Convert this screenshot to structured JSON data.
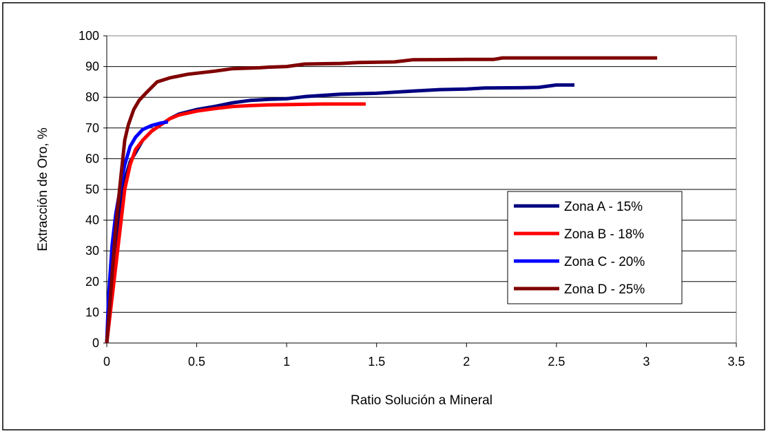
{
  "chart_data": {
    "type": "line",
    "title": "",
    "xlabel": "Ratio Solución a Mineral",
    "ylabel": "Extracción de Oro, %",
    "xlim": [
      0,
      3.5
    ],
    "ylim": [
      0,
      100
    ],
    "x_ticks": [
      "0",
      "0.5",
      "1",
      "1.5",
      "2",
      "2.5",
      "3",
      "3.5"
    ],
    "y_ticks": [
      "0",
      "10",
      "20",
      "30",
      "40",
      "50",
      "60",
      "70",
      "80",
      "90",
      "100"
    ],
    "grid": "horizontal",
    "legend_position": "inside-right",
    "series": [
      {
        "name": "Zona A - 15%",
        "color": "#000080",
        "points": [
          [
            0,
            0
          ],
          [
            0.02,
            12
          ],
          [
            0.05,
            30
          ],
          [
            0.08,
            45
          ],
          [
            0.1,
            53
          ],
          [
            0.13,
            59
          ],
          [
            0.16,
            62
          ],
          [
            0.2,
            66
          ],
          [
            0.25,
            69
          ],
          [
            0.3,
            71
          ],
          [
            0.35,
            73
          ],
          [
            0.4,
            74.5
          ],
          [
            0.5,
            76
          ],
          [
            0.6,
            77
          ],
          [
            0.7,
            78.2
          ],
          [
            0.8,
            79
          ],
          [
            0.9,
            79.3
          ],
          [
            1.0,
            79.5
          ],
          [
            1.1,
            80.2
          ],
          [
            1.2,
            80.6
          ],
          [
            1.3,
            81
          ],
          [
            1.5,
            81.3
          ],
          [
            1.7,
            82
          ],
          [
            1.85,
            82.5
          ],
          [
            2.0,
            82.7
          ],
          [
            2.1,
            83
          ],
          [
            2.3,
            83.1
          ],
          [
            2.4,
            83.2
          ],
          [
            2.5,
            84
          ],
          [
            2.6,
            84
          ]
        ]
      },
      {
        "name": "Zona B - 18%",
        "color": "#ff0000",
        "points": [
          [
            0,
            0
          ],
          [
            0.02,
            10
          ],
          [
            0.05,
            25
          ],
          [
            0.08,
            40
          ],
          [
            0.1,
            50
          ],
          [
            0.13,
            58
          ],
          [
            0.16,
            63
          ],
          [
            0.2,
            66
          ],
          [
            0.25,
            69
          ],
          [
            0.3,
            71
          ],
          [
            0.35,
            73
          ],
          [
            0.4,
            74.2
          ],
          [
            0.5,
            75.5
          ],
          [
            0.6,
            76.3
          ],
          [
            0.7,
            77
          ],
          [
            0.8,
            77.3
          ],
          [
            0.9,
            77.5
          ],
          [
            1.0,
            77.6
          ],
          [
            1.2,
            77.8
          ],
          [
            1.44,
            77.8
          ]
        ]
      },
      {
        "name": "Zona C - 20%",
        "color": "#0000ff",
        "points": [
          [
            0,
            0
          ],
          [
            0.01,
            15
          ],
          [
            0.03,
            32
          ],
          [
            0.05,
            42
          ],
          [
            0.08,
            52
          ],
          [
            0.1,
            58
          ],
          [
            0.13,
            64
          ],
          [
            0.16,
            67
          ],
          [
            0.2,
            69.5
          ],
          [
            0.25,
            70.8
          ],
          [
            0.3,
            71.6
          ],
          [
            0.34,
            72
          ]
        ]
      },
      {
        "name": "Zona D - 25%",
        "color": "#800000",
        "points": [
          [
            0,
            0
          ],
          [
            0.02,
            15
          ],
          [
            0.05,
            38
          ],
          [
            0.08,
            55
          ],
          [
            0.1,
            66
          ],
          [
            0.12,
            71
          ],
          [
            0.15,
            76
          ],
          [
            0.18,
            79
          ],
          [
            0.22,
            81.5
          ],
          [
            0.28,
            85
          ],
          [
            0.35,
            86.3
          ],
          [
            0.45,
            87.5
          ],
          [
            0.6,
            88.5
          ],
          [
            0.7,
            89.3
          ],
          [
            0.85,
            89.6
          ],
          [
            0.9,
            89.8
          ],
          [
            1.0,
            90
          ],
          [
            1.1,
            90.8
          ],
          [
            1.3,
            91
          ],
          [
            1.4,
            91.3
          ],
          [
            1.6,
            91.5
          ],
          [
            1.7,
            92.2
          ],
          [
            2.0,
            92.3
          ],
          [
            2.15,
            92.3
          ],
          [
            2.2,
            92.8
          ],
          [
            3.06,
            92.8
          ]
        ]
      }
    ]
  }
}
